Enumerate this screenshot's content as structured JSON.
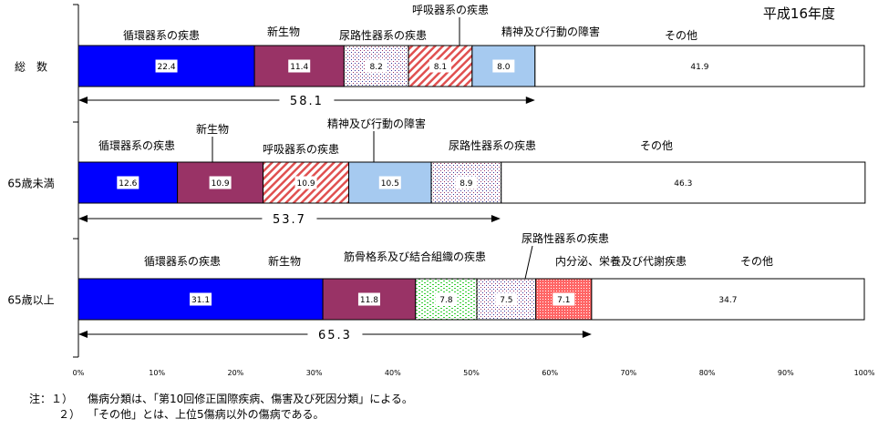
{
  "chart_data": {
    "type": "bar",
    "orientation": "horizontal",
    "stacked": true,
    "year_label": "平成16年度",
    "x_axis": {
      "ticks": [
        "0%",
        "10%",
        "20%",
        "30%",
        "40%",
        "50%",
        "60%",
        "70%",
        "80%",
        "90%",
        "100%"
      ],
      "range": [
        0,
        100
      ]
    },
    "rows": [
      {
        "label": "総　数",
        "segments": [
          {
            "category": "循環器系の疾患",
            "value": 22.4,
            "value_label": "22.4",
            "fill": "#0000ff"
          },
          {
            "category": "新生物",
            "value": 11.4,
            "value_label": "11.4",
            "fill": "#993366"
          },
          {
            "category": "尿路性器系の疾患",
            "value": 8.2,
            "value_label": "8.2",
            "fill": "dots"
          },
          {
            "category": "呼吸器系の疾患",
            "value": 8.1,
            "value_label": "8.1",
            "fill": "hatch"
          },
          {
            "category": "精神及び行動の障害",
            "value": 8.0,
            "value_label": "8.0",
            "fill": "#a6caf0"
          },
          {
            "category": "その他",
            "value": 41.9,
            "value_label": "41.9",
            "fill": "#ffffff"
          }
        ],
        "cumulative": {
          "value": 58.1,
          "label": "58.1"
        }
      },
      {
        "label": "65歳未満",
        "segments": [
          {
            "category": "循環器系の疾患",
            "value": 12.6,
            "value_label": "12.6",
            "fill": "#0000ff"
          },
          {
            "category": "新生物",
            "value": 10.9,
            "value_label": "10.9",
            "fill": "#993366"
          },
          {
            "category": "呼吸器系の疾患",
            "value": 10.9,
            "value_label": "10.9",
            "fill": "hatch"
          },
          {
            "category": "精神及び行動の障害",
            "value": 10.5,
            "value_label": "10.5",
            "fill": "#a6caf0"
          },
          {
            "category": "尿路性器系の疾患",
            "value": 8.9,
            "value_label": "8.9",
            "fill": "dots"
          },
          {
            "category": "その他",
            "value": 46.3,
            "value_label": "46.3",
            "fill": "#ffffff"
          }
        ],
        "cumulative": {
          "value": 53.7,
          "label": "53.7"
        }
      },
      {
        "label": "65歳以上",
        "segments": [
          {
            "category": "循環器系の疾患",
            "value": 31.1,
            "value_label": "31.1",
            "fill": "#0000ff"
          },
          {
            "category": "新生物",
            "value": 11.8,
            "value_label": "11.8",
            "fill": "#993366"
          },
          {
            "category": "筋骨格系及び結合組織の疾患",
            "value": 7.8,
            "value_label": "7.8",
            "fill": "green-dots"
          },
          {
            "category": "尿路性器系の疾患",
            "value": 7.5,
            "value_label": "7.5",
            "fill": "dots"
          },
          {
            "category": "内分泌、栄養及び代謝疾患",
            "value": 7.1,
            "value_label": "7.1",
            "fill": "red-dots"
          },
          {
            "category": "その他",
            "value": 34.7,
            "value_label": "34.7",
            "fill": "#ffffff"
          }
        ],
        "cumulative": {
          "value": 65.3,
          "label": "65.3"
        }
      }
    ]
  },
  "notes": [
    {
      "prefix": "注：１）",
      "text": "傷病分類は、「第10回修正国際疾病、傷害及び死因分類」による。"
    },
    {
      "prefix": "２）",
      "text": "「その他」とは、上位5傷病以外の傷病である。"
    }
  ]
}
